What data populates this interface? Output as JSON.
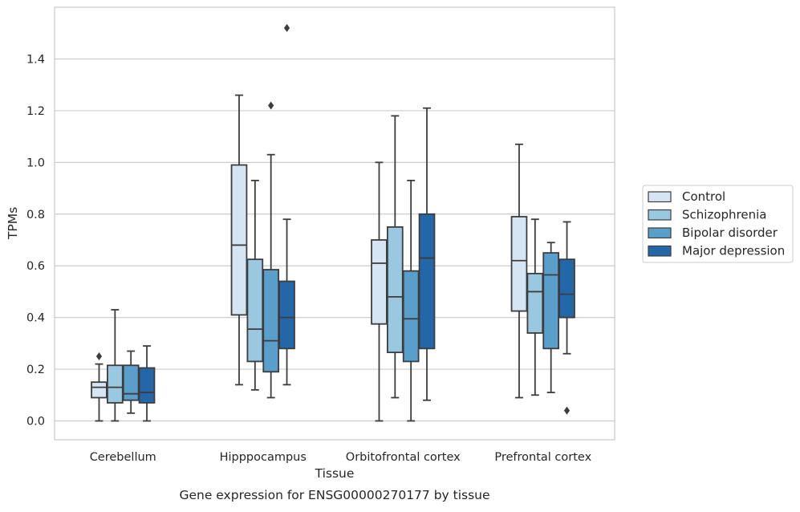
{
  "chart_data": {
    "type": "box",
    "caption": "Gene expression for ENSG00000270177 by tissue",
    "xlabel": "Tissue",
    "ylabel": "TPMs",
    "ylim": [
      -0.07,
      1.59
    ],
    "yticks": [
      0.0,
      0.2,
      0.4,
      0.6,
      0.8,
      1.0,
      1.2,
      1.4
    ],
    "ytick_labels": [
      "0.0",
      "0.2",
      "0.4",
      "0.6",
      "0.8",
      "1.0",
      "1.2",
      "1.4"
    ],
    "grid": "horizontal",
    "legend_position": "right, outside plot",
    "categories": [
      "Cerebellum",
      "Hipppocampus",
      "Orbitofrontal cortex",
      "Prefrontal cortex"
    ],
    "series": [
      {
        "name": "Control",
        "color": "#d6e5f4",
        "boxes": [
          {
            "whisker_low": 0.0,
            "q1": 0.09,
            "median": 0.13,
            "q3": 0.15,
            "whisker_high": 0.22,
            "outliers": [
              0.25
            ]
          },
          {
            "whisker_low": 0.14,
            "q1": 0.41,
            "median": 0.68,
            "q3": 0.99,
            "whisker_high": 1.26,
            "outliers": []
          },
          {
            "whisker_low": 0.0,
            "q1": 0.375,
            "median": 0.61,
            "q3": 0.7,
            "whisker_high": 1.0,
            "outliers": []
          },
          {
            "whisker_low": 0.09,
            "q1": 0.425,
            "median": 0.62,
            "q3": 0.79,
            "whisker_high": 1.07,
            "outliers": []
          }
        ]
      },
      {
        "name": "Schizophrenia",
        "color": "#9ac8e0",
        "boxes": [
          {
            "whisker_low": 0.0,
            "q1": 0.07,
            "median": 0.13,
            "q3": 0.215,
            "whisker_high": 0.43,
            "outliers": []
          },
          {
            "whisker_low": 0.12,
            "q1": 0.23,
            "median": 0.355,
            "q3": 0.625,
            "whisker_high": 0.93,
            "outliers": []
          },
          {
            "whisker_low": 0.09,
            "q1": 0.265,
            "median": 0.48,
            "q3": 0.75,
            "whisker_high": 1.18,
            "outliers": []
          },
          {
            "whisker_low": 0.1,
            "q1": 0.34,
            "median": 0.5,
            "q3": 0.57,
            "whisker_high": 0.78,
            "outliers": []
          }
        ]
      },
      {
        "name": "Bipolar disorder",
        "color": "#5a9ecc",
        "boxes": [
          {
            "whisker_low": 0.03,
            "q1": 0.08,
            "median": 0.105,
            "q3": 0.215,
            "whisker_high": 0.27,
            "outliers": []
          },
          {
            "whisker_low": 0.09,
            "q1": 0.19,
            "median": 0.31,
            "q3": 0.585,
            "whisker_high": 1.03,
            "outliers": [
              1.22
            ]
          },
          {
            "whisker_low": 0.0,
            "q1": 0.23,
            "median": 0.395,
            "q3": 0.58,
            "whisker_high": 0.93,
            "outliers": []
          },
          {
            "whisker_low": 0.11,
            "q1": 0.28,
            "median": 0.565,
            "q3": 0.65,
            "whisker_high": 0.69,
            "outliers": []
          }
        ]
      },
      {
        "name": "Major depression",
        "color": "#2467a9",
        "boxes": [
          {
            "whisker_low": 0.0,
            "q1": 0.07,
            "median": 0.11,
            "q3": 0.205,
            "whisker_high": 0.29,
            "outliers": []
          },
          {
            "whisker_low": 0.14,
            "q1": 0.28,
            "median": 0.4,
            "q3": 0.54,
            "whisker_high": 0.78,
            "outliers": [
              1.52
            ]
          },
          {
            "whisker_low": 0.08,
            "q1": 0.28,
            "median": 0.63,
            "q3": 0.8,
            "whisker_high": 1.21,
            "outliers": []
          },
          {
            "whisker_low": 0.26,
            "q1": 0.4,
            "median": 0.49,
            "q3": 0.625,
            "whisker_high": 0.77,
            "outliers": [
              0.04
            ]
          }
        ]
      }
    ]
  }
}
